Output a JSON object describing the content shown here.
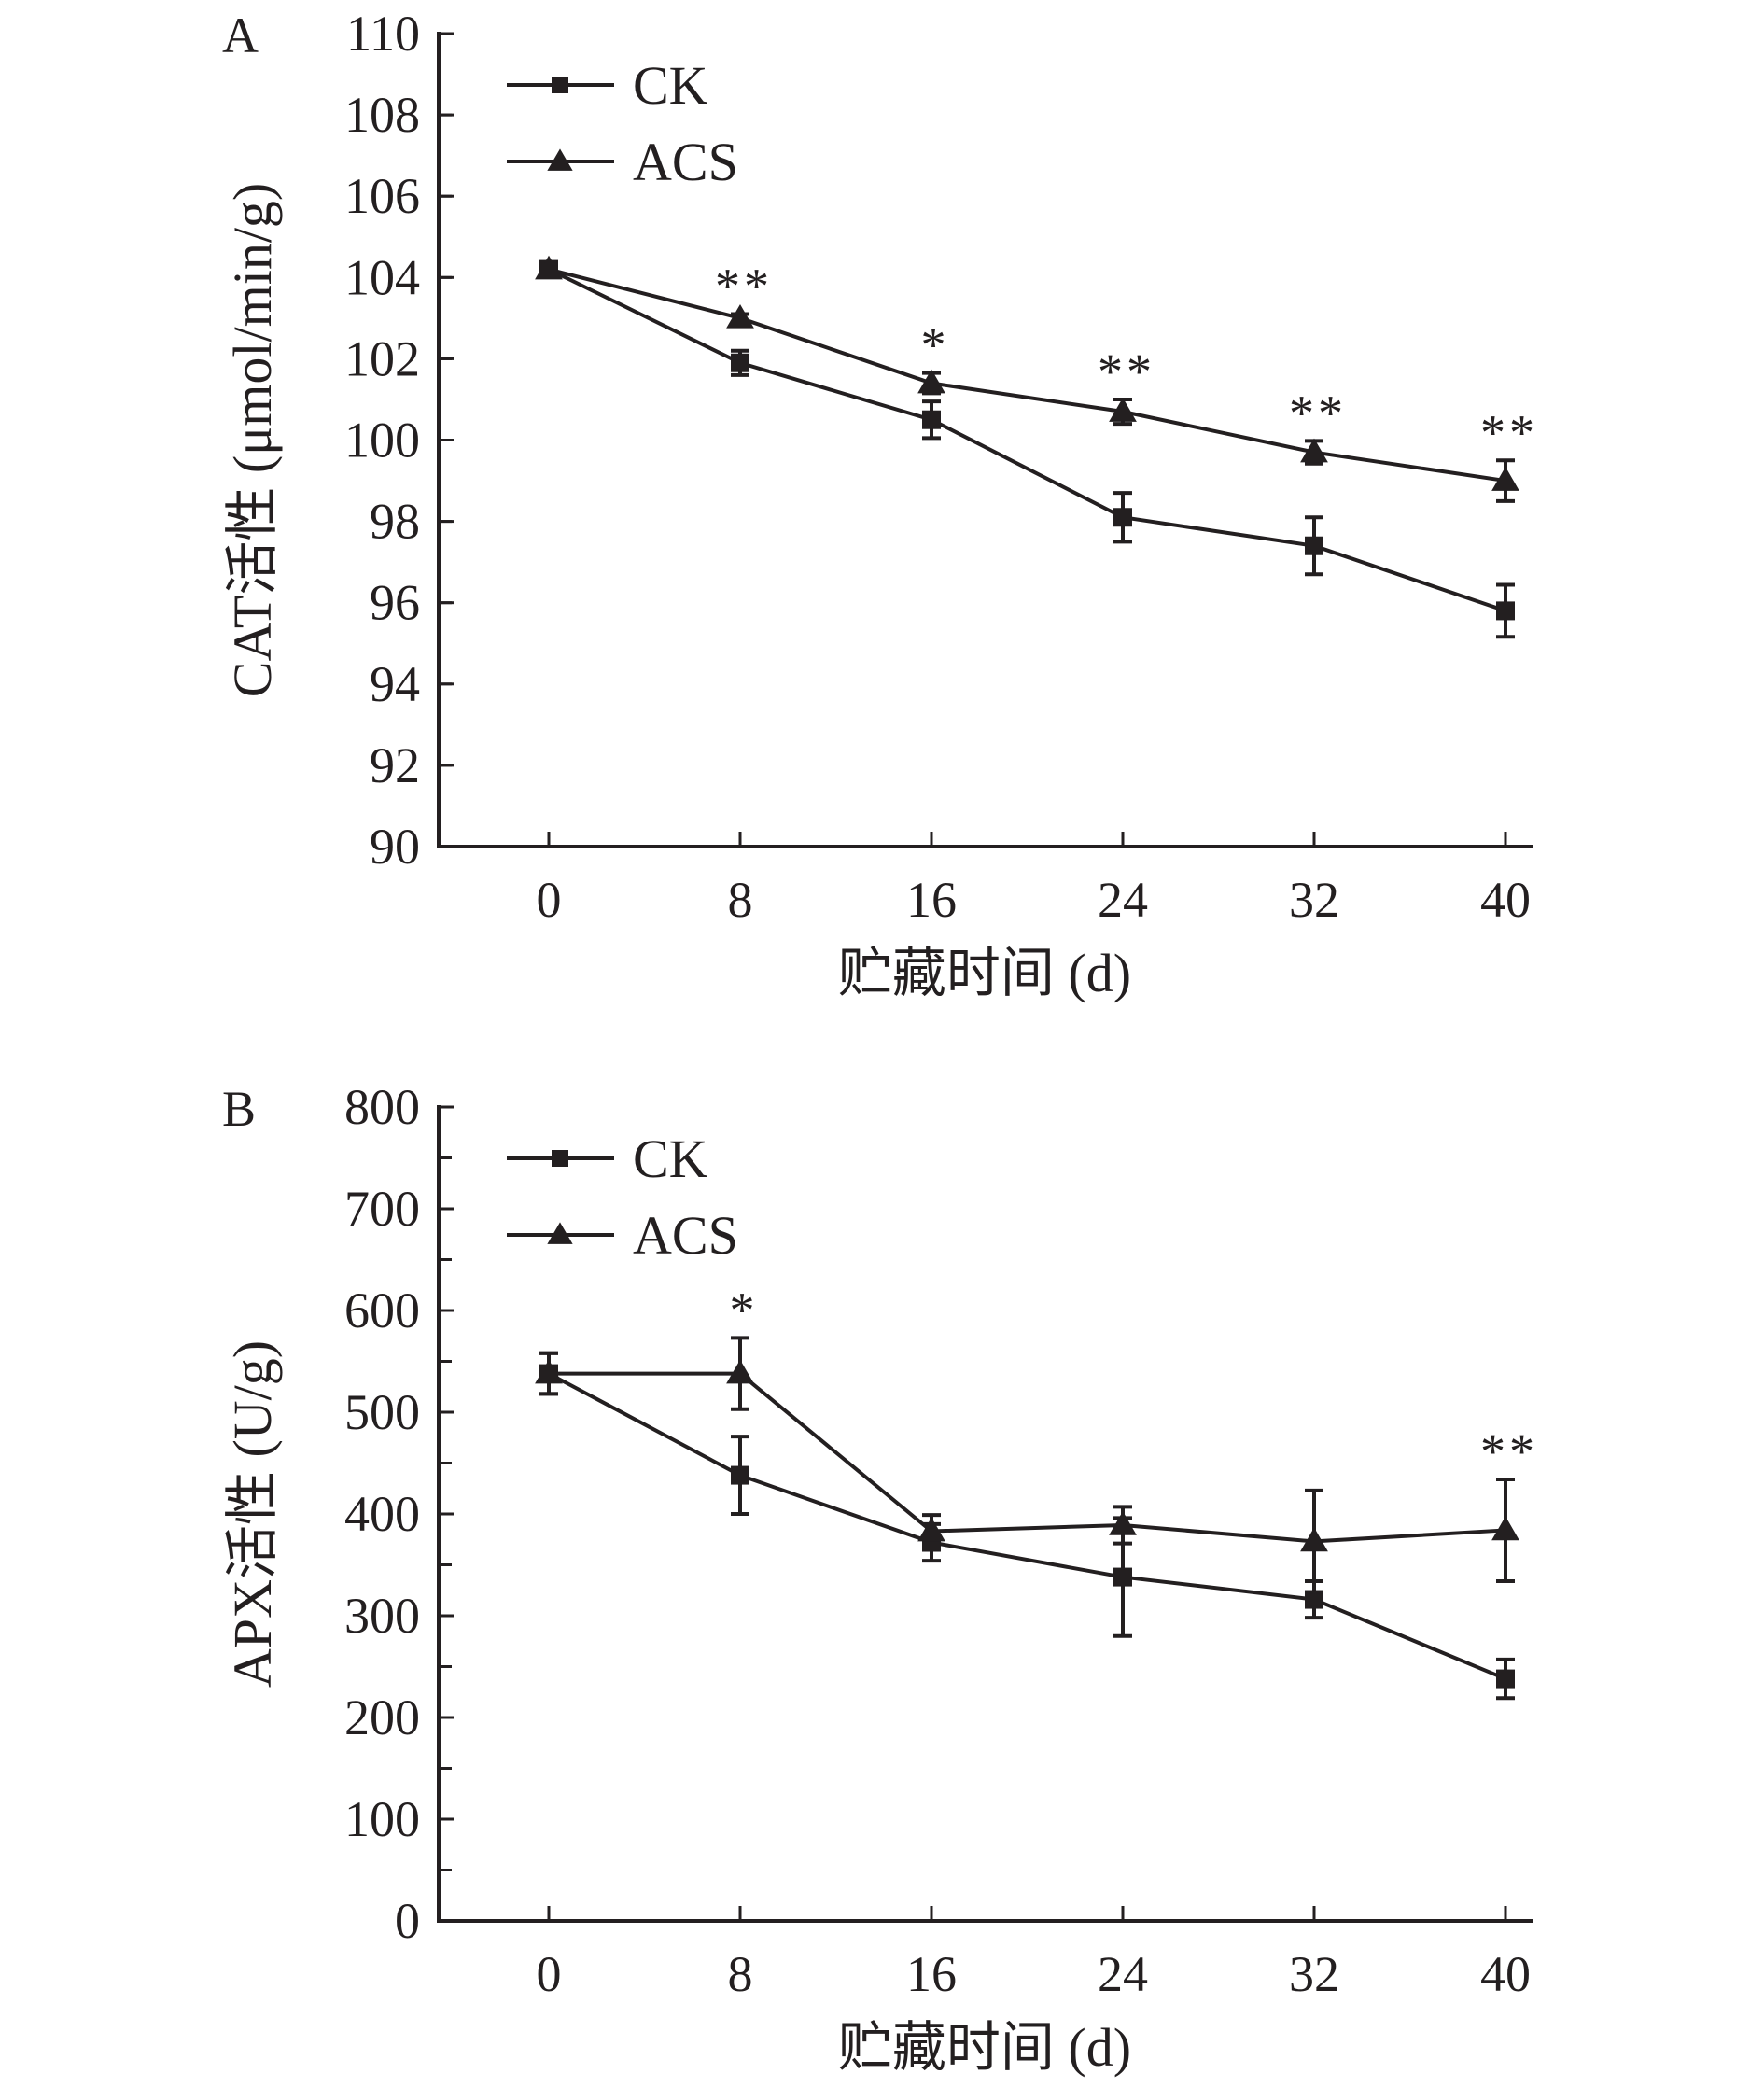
{
  "colors": {
    "ink": "#231f20",
    "background": "#ffffff"
  },
  "chart_data": [
    {
      "type": "line",
      "panel_label": "A",
      "title": "",
      "xlabel": "贮藏时间 (d)",
      "ylabel": "CAT活性 (μmol/min/g)",
      "x": [
        0,
        8,
        16,
        24,
        32,
        40
      ],
      "x_tick_labels": [
        "0",
        "8",
        "16",
        "24",
        "32",
        "40"
      ],
      "ylim": [
        90,
        110
      ],
      "y_ticks": [
        90,
        92,
        94,
        96,
        98,
        100,
        102,
        104,
        106,
        108,
        110
      ],
      "y_minor_step": 2,
      "legend_position": "top-left",
      "series": [
        {
          "name": "CK",
          "marker": "square",
          "values": [
            104.2,
            101.9,
            100.5,
            98.1,
            97.4,
            95.8
          ],
          "errors": [
            0.1,
            0.3,
            0.45,
            0.6,
            0.7,
            0.64
          ]
        },
        {
          "name": "ACS",
          "marker": "triangle",
          "values": [
            104.2,
            103.0,
            101.4,
            100.7,
            99.7,
            99.0
          ],
          "errors": [
            0.15,
            0.1,
            0.25,
            0.3,
            0.28,
            0.5
          ]
        }
      ],
      "annotations": [
        {
          "x": 8,
          "text": "**"
        },
        {
          "x": 16,
          "text": "*"
        },
        {
          "x": 24,
          "text": "**"
        },
        {
          "x": 32,
          "text": "**"
        },
        {
          "x": 40,
          "text": "**"
        }
      ]
    },
    {
      "type": "line",
      "panel_label": "B",
      "title": "",
      "xlabel": "贮藏时间 (d)",
      "ylabel": "APX活性 (U/g)",
      "x": [
        0,
        8,
        16,
        24,
        32,
        40
      ],
      "x_tick_labels": [
        "0",
        "8",
        "16",
        "24",
        "32",
        "40"
      ],
      "ylim": [
        0,
        800
      ],
      "y_ticks": [
        0,
        100,
        200,
        300,
        400,
        500,
        600,
        700,
        800
      ],
      "y_minor_step": 50,
      "legend_position": "top-left",
      "series": [
        {
          "name": "CK",
          "marker": "square",
          "values": [
            538,
            438,
            372,
            338,
            316,
            238
          ],
          "errors": [
            20,
            38,
            18,
            58,
            18,
            19
          ]
        },
        {
          "name": "ACS",
          "marker": "triangle",
          "values": [
            538,
            538,
            383,
            389,
            373,
            384
          ],
          "errors": [
            20,
            35,
            16,
            18,
            50,
            50
          ]
        }
      ],
      "annotations": [
        {
          "x": 8,
          "text": "*"
        },
        {
          "x": 40,
          "text": "**"
        }
      ]
    }
  ]
}
